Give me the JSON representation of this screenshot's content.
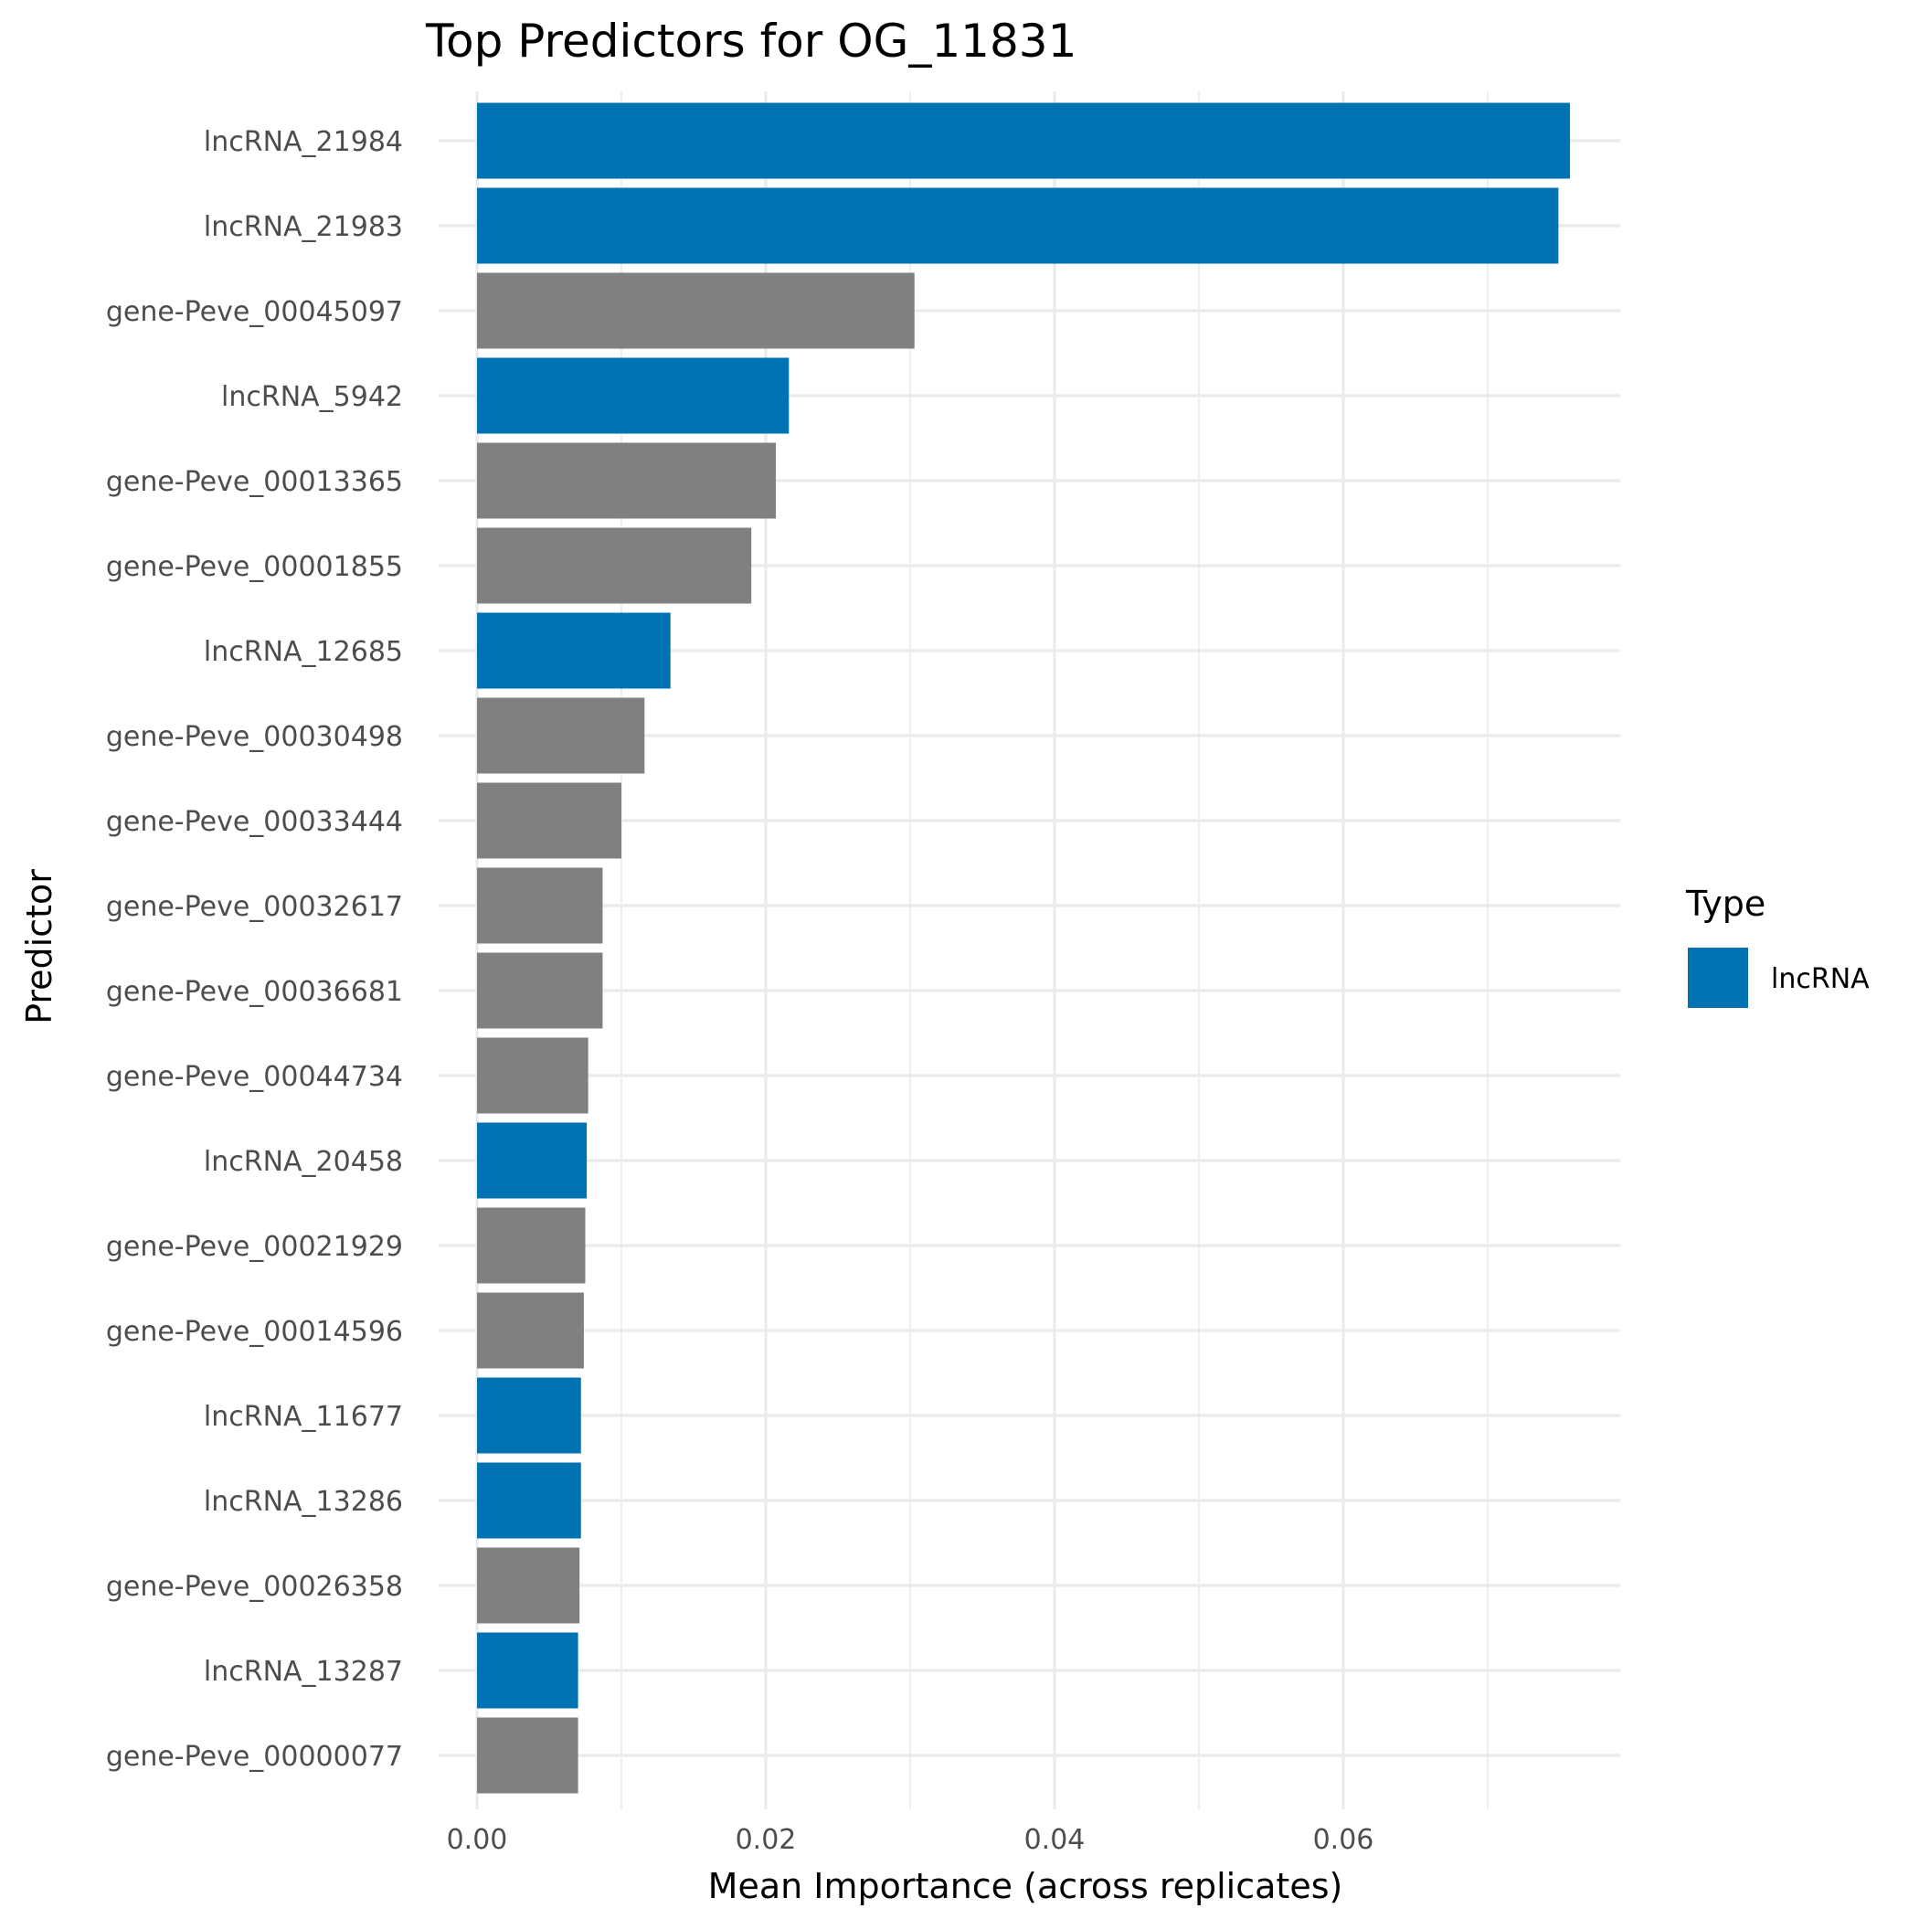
{
  "chart_data": {
    "type": "bar",
    "orientation": "horizontal",
    "title": "Top Predictors for OG_11831",
    "xlabel": "Mean Importance (across replicates)",
    "ylabel": "Predictor",
    "xlim": [
      0,
      0.08
    ],
    "xticks": [
      0,
      0.02,
      0.04,
      0.06
    ],
    "xtick_labels": [
      "0.00",
      "0.02",
      "0.04",
      "0.06"
    ],
    "grid": true,
    "legend": {
      "title": "Type",
      "placement": "right",
      "entries": [
        {
          "label": "lncRNA",
          "color": "#0072B2"
        }
      ]
    },
    "colors": {
      "lncRNA": "#0072B2",
      "gene": "#808080"
    },
    "categories": [
      "lncRNA_21984",
      "lncRNA_21983",
      "gene-Peve_00045097",
      "lncRNA_5942",
      "gene-Peve_00013365",
      "gene-Peve_00001855",
      "lncRNA_12685",
      "gene-Peve_00030498",
      "gene-Peve_00033444",
      "gene-Peve_00032617",
      "gene-Peve_00036681",
      "gene-Peve_00044734",
      "lncRNA_20458",
      "gene-Peve_00021929",
      "gene-Peve_00014596",
      "lncRNA_11677",
      "lncRNA_13286",
      "gene-Peve_00026358",
      "lncRNA_13287",
      "gene-Peve_00000077"
    ],
    "values": [
      0.0757,
      0.0749,
      0.0303,
      0.0216,
      0.0207,
      0.019,
      0.0134,
      0.0116,
      0.01,
      0.0087,
      0.0087,
      0.0077,
      0.0076,
      0.0075,
      0.0074,
      0.0072,
      0.0072,
      0.0071,
      0.007,
      0.007
    ],
    "types": [
      "lncRNA",
      "lncRNA",
      "gene",
      "lncRNA",
      "gene",
      "gene",
      "lncRNA",
      "gene",
      "gene",
      "gene",
      "gene",
      "gene",
      "lncRNA",
      "gene",
      "gene",
      "lncRNA",
      "lncRNA",
      "gene",
      "lncRNA",
      "gene"
    ]
  }
}
